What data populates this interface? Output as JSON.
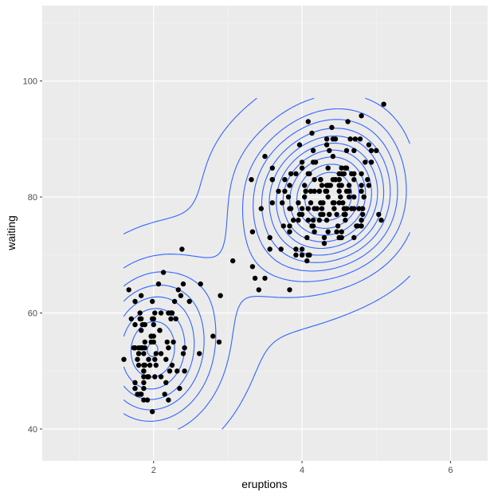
{
  "chart_data": {
    "type": "scatter",
    "title": "",
    "xlabel": "eruptions",
    "ylabel": "waiting",
    "xlim": [
      0.5,
      6.5
    ],
    "ylim": [
      34.5,
      113
    ],
    "x_ticks": [
      2,
      4,
      6
    ],
    "x_tick_labels": [
      "2",
      "4",
      "6"
    ],
    "y_ticks": [
      40,
      60,
      80,
      100
    ],
    "y_tick_labels": [
      "40",
      "60",
      "80",
      "100"
    ],
    "grid": true,
    "legend": "none",
    "layers": [
      "points",
      "density_2d_contours"
    ],
    "colors": {
      "panel_bg": "#ebebeb",
      "grid_major": "#ffffff",
      "grid_minor": "#f5f5f5",
      "points": "#000000",
      "contours": "#3366ff",
      "tick_text": "#4d4d4d"
    },
    "points": [
      [
        3.6,
        79
      ],
      [
        1.8,
        54
      ],
      [
        3.333,
        74
      ],
      [
        2.283,
        62
      ],
      [
        4.533,
        85
      ],
      [
        2.883,
        55
      ],
      [
        4.7,
        88
      ],
      [
        3.6,
        85
      ],
      [
        1.95,
        51
      ],
      [
        4.35,
        85
      ],
      [
        1.833,
        54
      ],
      [
        3.917,
        84
      ],
      [
        4.2,
        78
      ],
      [
        1.75,
        47
      ],
      [
        4.7,
        83
      ],
      [
        2.167,
        52
      ],
      [
        1.75,
        62
      ],
      [
        4.8,
        84
      ],
      [
        1.6,
        52
      ],
      [
        4.25,
        79
      ],
      [
        1.8,
        51
      ],
      [
        1.75,
        47
      ],
      [
        3.45,
        78
      ],
      [
        3.067,
        69
      ],
      [
        4.533,
        74
      ],
      [
        3.6,
        83
      ],
      [
        1.967,
        55
      ],
      [
        4.083,
        76
      ],
      [
        3.85,
        78
      ],
      [
        4.433,
        79
      ],
      [
        4.3,
        73
      ],
      [
        4.467,
        77
      ],
      [
        3.367,
        66
      ],
      [
        4.033,
        80
      ],
      [
        3.833,
        74
      ],
      [
        2.017,
        52
      ],
      [
        1.867,
        48
      ],
      [
        4.833,
        80
      ],
      [
        1.833,
        59
      ],
      [
        4.783,
        90
      ],
      [
        4.35,
        80
      ],
      [
        1.883,
        58
      ],
      [
        4.567,
        84
      ],
      [
        1.75,
        58
      ],
      [
        4.533,
        73
      ],
      [
        3.317,
        83
      ],
      [
        3.833,
        64
      ],
      [
        2.1,
        53
      ],
      [
        4.633,
        82
      ],
      [
        2,
        59
      ],
      [
        4.8,
        75
      ],
      [
        4.716,
        90
      ],
      [
        1.833,
        54
      ],
      [
        4.833,
        80
      ],
      [
        1.733,
        54
      ],
      [
        4.883,
        83
      ],
      [
        3.717,
        71
      ],
      [
        1.667,
        64
      ],
      [
        4.567,
        77
      ],
      [
        4.317,
        81
      ],
      [
        2.233,
        59
      ],
      [
        4.5,
        84
      ],
      [
        1.75,
        48
      ],
      [
        4.8,
        82
      ],
      [
        1.817,
        60
      ],
      [
        4.4,
        92
      ],
      [
        4.167,
        78
      ],
      [
        4.7,
        78
      ],
      [
        2.067,
        65
      ],
      [
        4.7,
        73
      ],
      [
        4.033,
        82
      ],
      [
        1.967,
        56
      ],
      [
        4.5,
        79
      ],
      [
        4,
        71
      ],
      [
        1.983,
        62
      ],
      [
        5.067,
        76
      ],
      [
        2.017,
        60
      ],
      [
        4.567,
        78
      ],
      [
        3.883,
        76
      ],
      [
        3.6,
        83
      ],
      [
        4.133,
        75
      ],
      [
        4.333,
        82
      ],
      [
        4.1,
        70
      ],
      [
        2.633,
        65
      ],
      [
        4.067,
        73
      ],
      [
        4.933,
        88
      ],
      [
        3.95,
        76
      ],
      [
        4.517,
        80
      ],
      [
        2.167,
        48
      ],
      [
        4,
        86
      ],
      [
        2.2,
        60
      ],
      [
        4.333,
        90
      ],
      [
        1.867,
        50
      ],
      [
        4.817,
        78
      ],
      [
        1.833,
        63
      ],
      [
        4.3,
        72
      ],
      [
        4.667,
        84
      ],
      [
        3.75,
        75
      ],
      [
        1.867,
        51
      ],
      [
        4.9,
        82
      ],
      [
        2.483,
        62
      ],
      [
        4.367,
        88
      ],
      [
        2.1,
        49
      ],
      [
        4.5,
        83
      ],
      [
        4.05,
        81
      ],
      [
        1.867,
        47
      ],
      [
        4.7,
        84
      ],
      [
        1.783,
        52
      ],
      [
        4.85,
        86
      ],
      [
        3.683,
        81
      ],
      [
        4.733,
        75
      ],
      [
        2.3,
        59
      ],
      [
        4.9,
        89
      ],
      [
        4.417,
        79
      ],
      [
        1.7,
        59
      ],
      [
        4.633,
        81
      ],
      [
        2.317,
        50
      ],
      [
        4.6,
        85
      ],
      [
        1.817,
        59
      ],
      [
        4.417,
        87
      ],
      [
        2.617,
        53
      ],
      [
        4.067,
        69
      ],
      [
        4.25,
        77
      ],
      [
        1.967,
        56
      ],
      [
        4.6,
        88
      ],
      [
        3.767,
        81
      ],
      [
        1.917,
        45
      ],
      [
        4.5,
        82
      ],
      [
        2.267,
        55
      ],
      [
        4.65,
        90
      ],
      [
        1.867,
        45
      ],
      [
        4.167,
        83
      ],
      [
        2.8,
        56
      ],
      [
        4.333,
        89
      ],
      [
        1.833,
        46
      ],
      [
        4.383,
        82
      ],
      [
        1.883,
        51
      ],
      [
        4.933,
        86
      ],
      [
        2.033,
        53
      ],
      [
        3.733,
        79
      ],
      [
        4.233,
        81
      ],
      [
        2.233,
        60
      ],
      [
        4.533,
        82
      ],
      [
        4.817,
        77
      ],
      [
        4.333,
        76
      ],
      [
        1.983,
        59
      ],
      [
        4.633,
        80
      ],
      [
        2.017,
        49
      ],
      [
        5.1,
        96
      ],
      [
        1.8,
        53
      ],
      [
        5.033,
        77
      ],
      [
        4,
        77
      ],
      [
        2.4,
        65
      ],
      [
        4.6,
        81
      ],
      [
        3.567,
        71
      ],
      [
        4,
        70
      ],
      [
        4.5,
        81
      ],
      [
        4.083,
        93
      ],
      [
        1.8,
        53
      ],
      [
        3.967,
        89
      ],
      [
        2.2,
        45
      ],
      [
        4.15,
        86
      ],
      [
        2,
        58
      ],
      [
        3.833,
        78
      ],
      [
        3.5,
        66
      ],
      [
        4.583,
        76
      ],
      [
        2.367,
        63
      ],
      [
        5,
        88
      ],
      [
        1.933,
        52
      ],
      [
        4.617,
        93
      ],
      [
        1.917,
        49
      ],
      [
        2.083,
        57
      ],
      [
        4.583,
        77
      ],
      [
        3.333,
        68
      ],
      [
        4.167,
        81
      ],
      [
        4.333,
        81
      ],
      [
        4.5,
        73
      ],
      [
        2.417,
        50
      ],
      [
        4,
        85
      ],
      [
        4.167,
        74
      ],
      [
        1.883,
        55
      ],
      [
        4.583,
        77
      ],
      [
        4.25,
        83
      ],
      [
        3.767,
        83
      ],
      [
        2.033,
        51
      ],
      [
        4.433,
        78
      ],
      [
        4.083,
        84
      ],
      [
        1.833,
        46
      ],
      [
        4.417,
        83
      ],
      [
        2.183,
        55
      ],
      [
        4.8,
        81
      ],
      [
        1.833,
        57
      ],
      [
        4.8,
        76
      ],
      [
        4.1,
        84
      ],
      [
        3.966,
        77
      ],
      [
        4.233,
        81
      ],
      [
        3.5,
        87
      ],
      [
        4.366,
        77
      ],
      [
        2.25,
        51
      ],
      [
        4.667,
        78
      ],
      [
        2.1,
        60
      ],
      [
        4.35,
        82
      ],
      [
        4.133,
        91
      ],
      [
        1.867,
        53
      ],
      [
        4.6,
        78
      ],
      [
        1.783,
        46
      ],
      [
        4.367,
        77
      ],
      [
        3.85,
        84
      ],
      [
        1.933,
        49
      ],
      [
        4.5,
        83
      ],
      [
        2.383,
        71
      ],
      [
        4.7,
        80
      ],
      [
        1.867,
        49
      ],
      [
        3.833,
        75
      ],
      [
        3.417,
        64
      ],
      [
        4.233,
        76
      ],
      [
        2.4,
        53
      ],
      [
        4.8,
        94
      ],
      [
        2,
        55
      ],
      [
        4.15,
        76
      ],
      [
        1.867,
        50
      ],
      [
        4.267,
        82
      ],
      [
        1.75,
        54
      ],
      [
        4.483,
        75
      ],
      [
        4,
        78
      ],
      [
        4.117,
        79
      ],
      [
        4.083,
        78
      ],
      [
        4.267,
        78
      ],
      [
        3.917,
        70
      ],
      [
        4.55,
        79
      ],
      [
        4.083,
        70
      ],
      [
        2.417,
        54
      ],
      [
        4.183,
        86
      ],
      [
        2.217,
        50
      ],
      [
        4.45,
        90
      ],
      [
        1.883,
        54
      ],
      [
        1.85,
        54
      ],
      [
        4.283,
        77
      ],
      [
        3.95,
        79
      ],
      [
        2.333,
        64
      ],
      [
        4.15,
        75
      ],
      [
        2.35,
        47
      ],
      [
        4.933,
        86
      ],
      [
        2.9,
        63
      ],
      [
        4.583,
        85
      ],
      [
        3.833,
        82
      ],
      [
        2.083,
        57
      ],
      [
        4.367,
        82
      ],
      [
        2.133,
        67
      ],
      [
        4.35,
        74
      ],
      [
        2.2,
        54
      ],
      [
        4.45,
        83
      ],
      [
        3.567,
        73
      ],
      [
        4.5,
        73
      ],
      [
        4.15,
        88
      ],
      [
        3.817,
        80
      ],
      [
        3.917,
        71
      ],
      [
        4.45,
        83
      ],
      [
        2,
        56
      ],
      [
        4.283,
        79
      ],
      [
        4.767,
        78
      ],
      [
        4.533,
        84
      ],
      [
        1.85,
        58
      ],
      [
        4.25,
        83
      ],
      [
        1.983,
        43
      ],
      [
        2.25,
        60
      ],
      [
        4.75,
        75
      ],
      [
        4.117,
        81
      ],
      [
        2.15,
        46
      ],
      [
        4.417,
        90
      ],
      [
        1.817,
        46
      ],
      [
        4.467,
        74
      ]
    ],
    "density_contours": {
      "modes": [
        {
          "x": 1.95,
          "y": 53.5,
          "note": "lower-left cluster center"
        },
        {
          "x": 4.35,
          "y": 80.0,
          "note": "upper-right cluster center"
        }
      ],
      "lower_cluster_rings": 8,
      "upper_cluster_rings": 11,
      "outer_contours_connect_clusters": true
    }
  }
}
